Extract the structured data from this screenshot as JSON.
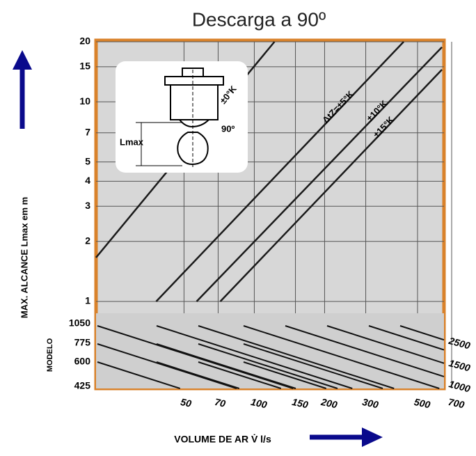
{
  "chart_data": {
    "type": "line",
    "title": "Descarga a 90º",
    "y_label": "MAX. ALCANCE Lmax em m",
    "x_label": "VOLUME DE AR V̇ l/s",
    "x_log": true,
    "y_log": true,
    "grid": true,
    "color": "#1a1a1a",
    "xlim": [
      21,
      649
    ],
    "ylim": [
      1,
      20
    ],
    "xticks": [
      50,
      70,
      100,
      150,
      200,
      300,
      500,
      700
    ],
    "yticks": [
      1,
      2,
      3,
      4,
      5,
      7,
      10,
      15,
      20
    ],
    "series": [
      {
        "name": "±0°K",
        "x": [
          21,
          122
        ],
        "values": [
          1.66,
          20
        ]
      },
      {
        "name": "ΔtZ=±5°K",
        "x": [
          38,
          436
        ],
        "values": [
          1,
          20
        ]
      },
      {
        "name": "±10°K",
        "x": [
          56.6,
          636
        ],
        "values": [
          1,
          18.8
        ]
      },
      {
        "name": "±15°K",
        "x": [
          71.5,
          636
        ],
        "values": [
          1,
          14.5
        ]
      }
    ],
    "lower_panel": {
      "axis_label": "MODELO",
      "labels": [
        "1050",
        "775",
        "600",
        "425"
      ],
      "right_labels": [
        "2500",
        "1500",
        "1000"
      ]
    },
    "inset": {
      "lmax": "Lmax",
      "angle": "90º"
    }
  }
}
